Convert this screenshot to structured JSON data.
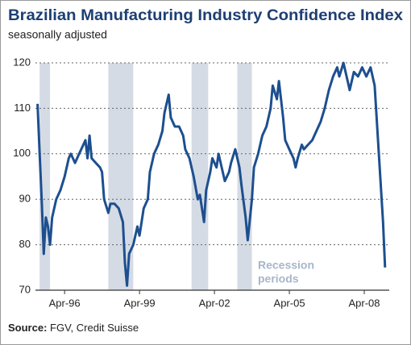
{
  "chart_data": {
    "type": "line",
    "title": "Brazilian Manufacturing Industry Confidence Index",
    "subtitle": "seasonally adjusted",
    "source_label": "Source:",
    "source": "FGV, Credit Suisse",
    "annotation": {
      "lines": [
        "Recession",
        "periods"
      ]
    },
    "recession_periods": [
      [
        "1995-04",
        "1995-09"
      ],
      [
        "1998-01",
        "1999-01"
      ],
      [
        "2001-05",
        "2002-01"
      ],
      [
        "2003-03",
        "2003-10"
      ]
    ],
    "recession_color": "#d5dbe4",
    "x": [
      "1995-03",
      "1995-04",
      "1995-05",
      "1995-06",
      "1995-07",
      "1995-08",
      "1995-09",
      "1995-10",
      "1995-12",
      "1996-02",
      "1996-04",
      "1996-06",
      "1996-07",
      "1996-09",
      "1996-11",
      "1996-12",
      "1997-02",
      "1997-03",
      "1997-04",
      "1997-05",
      "1997-07",
      "1997-09",
      "1997-10",
      "1997-11",
      "1998-01",
      "1998-02",
      "1998-04",
      "1998-06",
      "1998-08",
      "1998-09",
      "1998-10",
      "1998-11",
      "1999-01",
      "1999-03",
      "1999-04",
      "1999-06",
      "1999-08",
      "1999-09",
      "1999-11",
      "2000-01",
      "2000-03",
      "2000-04",
      "2000-06",
      "2000-07",
      "2000-09",
      "2000-11",
      "2001-01",
      "2001-02",
      "2001-04",
      "2001-06",
      "2001-08",
      "2001-09",
      "2001-10",
      "2001-11",
      "2001-12",
      "2002-02",
      "2002-03",
      "2002-05",
      "2002-06",
      "2002-08",
      "2002-09",
      "2002-11",
      "2002-12",
      "2003-02",
      "2003-04",
      "2003-05",
      "2003-07",
      "2003-08",
      "2003-10",
      "2003-11",
      "2004-01",
      "2004-03",
      "2004-05",
      "2004-07",
      "2004-08",
      "2004-10",
      "2004-11",
      "2005-01",
      "2005-02",
      "2005-04",
      "2005-06",
      "2005-07",
      "2005-08",
      "2005-10",
      "2005-11",
      "2006-01",
      "2006-03",
      "2006-05",
      "2006-07",
      "2006-09",
      "2006-11",
      "2007-01",
      "2007-03",
      "2007-04",
      "2007-06",
      "2007-08",
      "2007-09",
      "2007-11",
      "2008-01",
      "2008-03",
      "2008-05",
      "2008-07",
      "2008-09",
      "2008-11",
      "2009-01",
      "2009-02"
    ],
    "series": [
      {
        "name": "Confidence Index",
        "color": "#1d4f8f",
        "values": [
          111,
          100,
          90,
          78,
          86,
          84,
          80,
          86,
          90,
          92,
          95,
          99,
          100,
          98,
          100,
          101,
          103,
          99,
          104,
          99,
          98,
          97,
          96,
          90,
          87,
          89,
          89,
          88,
          85,
          76,
          71,
          78,
          80,
          84,
          82,
          88,
          90,
          96,
          100,
          102,
          105,
          109,
          113,
          108,
          106,
          106,
          104,
          101,
          99,
          95,
          90,
          91,
          88,
          85,
          92,
          96,
          99,
          97,
          100,
          96,
          94,
          96,
          98,
          101,
          97,
          93,
          86,
          81,
          90,
          97,
          100,
          104,
          106,
          110,
          115,
          112,
          116,
          108,
          103,
          101,
          99,
          97,
          99,
          102,
          101,
          102,
          103,
          105,
          107,
          110,
          114,
          117,
          119,
          117,
          120,
          116,
          114,
          118,
          117,
          119,
          117,
          119,
          115,
          100,
          85,
          75
        ]
      }
    ],
    "xlim": [
      "1995-02",
      "2009-04"
    ],
    "xticks": [
      {
        "value": "1996-04",
        "label": "Apr-96"
      },
      {
        "value": "1999-04",
        "label": "Apr-99"
      },
      {
        "value": "2002-04",
        "label": "Apr-02"
      },
      {
        "value": "2005-04",
        "label": "Apr-05"
      },
      {
        "value": "2008-04",
        "label": "Apr-08"
      }
    ],
    "ylim": [
      70,
      120
    ],
    "yticks": [
      70,
      80,
      90,
      100,
      110,
      120
    ],
    "grid": true
  }
}
